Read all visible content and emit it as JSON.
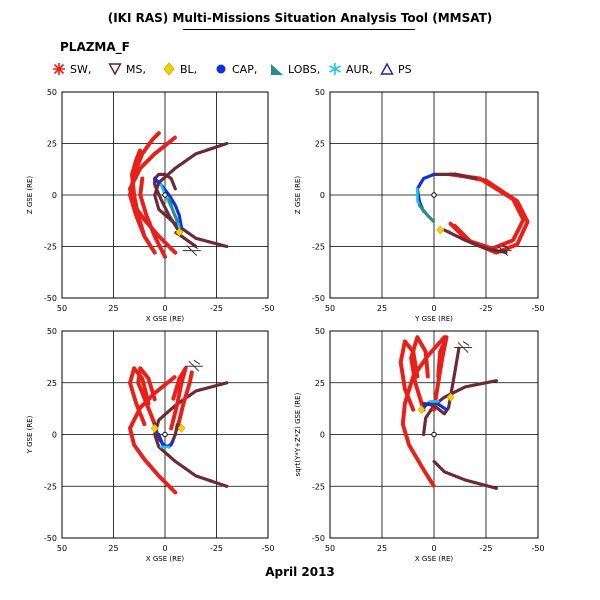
{
  "header": {
    "title": "(IKI RAS) Multi-Missions Situation Analysis Tool (MMSAT)",
    "subtitle": "PLAZMA_F"
  },
  "legend": [
    {
      "label": "SW,",
      "symbol": "star",
      "color": "#e8201a"
    },
    {
      "label": "MS,",
      "symbol": "triangle-down",
      "color": "#6b1a2a"
    },
    {
      "label": "BL,",
      "symbol": "diamond",
      "color": "#f5d000"
    },
    {
      "label": "CAP,",
      "symbol": "dot",
      "color": "#1030e0"
    },
    {
      "label": "LOBS,",
      "symbol": "right-triangle",
      "color": "#2c8c8c"
    },
    {
      "label": "AUR,",
      "symbol": "asterisk",
      "color": "#20c8e0"
    },
    {
      "label": "PS",
      "symbol": "triangle-up",
      "color": "#2020a0"
    }
  ],
  "footer": {
    "date": "April 2013"
  },
  "colors": {
    "SW": "#e8201a",
    "MS": "#6b2a36",
    "BL": "#f5d000",
    "CAP": "#1030e0",
    "LOBS": "#2c8c8c",
    "AUR": "#20c8e0",
    "grid": "#000000"
  },
  "chart_data": [
    {
      "type": "scatter",
      "xlabel": "X GSE (RE)",
      "ylabel": "Z GSE (RE)",
      "xlim": [
        50,
        -50
      ],
      "ylim": [
        -50,
        50
      ],
      "xticks": [
        "50",
        "25",
        "0",
        "-25",
        "-50"
      ],
      "yticks": [
        "-50",
        "-25",
        "0",
        "25",
        "50"
      ],
      "grid": true,
      "series": [
        {
          "kind": "magnetopause-boundary",
          "points": [
            [
              -30,
              25
            ],
            [
              -15,
              20
            ],
            [
              -5,
              13
            ],
            [
              3,
              6
            ],
            [
              5,
              0
            ],
            [
              3,
              -7
            ],
            [
              -5,
              -14
            ],
            [
              -15,
              -21
            ],
            [
              -30,
              -25
            ]
          ]
        },
        {
          "kind": "bow-shock-boundary",
          "points": [
            [
              -5,
              -28
            ],
            [
              3,
              -20
            ],
            [
              10,
              -12
            ],
            [
              15,
              -5
            ],
            [
              17,
              3
            ],
            [
              12,
              13
            ],
            [
              5,
              20
            ],
            [
              -5,
              28
            ]
          ]
        },
        {
          "kind": "orbit-sw",
          "points": [
            [
              10,
              -20
            ],
            [
              13,
              -10
            ],
            [
              15,
              0
            ],
            [
              16,
              10
            ],
            [
              14,
              17
            ],
            [
              12,
              22
            ]
          ]
        },
        {
          "kind": "orbit-sw",
          "points": [
            [
              5,
              -28
            ],
            [
              10,
              -20
            ],
            [
              14,
              -10
            ],
            [
              17,
              0
            ],
            [
              15,
              10
            ],
            [
              11,
              20
            ],
            [
              6,
              27
            ],
            [
              3,
              30
            ]
          ]
        },
        {
          "kind": "orbit-sw",
          "points": [
            [
              0,
              -30
            ],
            [
              5,
              -20
            ],
            [
              9,
              -10
            ],
            [
              12,
              0
            ],
            [
              11,
              8
            ]
          ]
        },
        {
          "kind": "orbit-ms",
          "points": [
            [
              -7,
              -18
            ],
            [
              -2,
              -10
            ],
            [
              2,
              -2
            ],
            [
              5,
              5
            ],
            [
              5,
              8
            ],
            [
              3,
              10
            ],
            [
              0,
              10
            ],
            [
              -3,
              8
            ],
            [
              -5,
              3
            ]
          ]
        },
        {
          "kind": "orbit-ms",
          "points": [
            [
              -15,
              -25
            ],
            [
              -8,
              -20
            ],
            [
              -5,
              -18
            ]
          ]
        },
        {
          "kind": "orbit-cap",
          "points": [
            [
              5,
              8
            ],
            [
              2,
              5
            ],
            [
              -2,
              0
            ],
            [
              -5,
              -5
            ],
            [
              -7,
              -10
            ],
            [
              -8,
              -16
            ]
          ]
        },
        {
          "kind": "orbit-aur",
          "points": [
            [
              2,
              5
            ],
            [
              0,
              0
            ],
            [
              -3,
              -6
            ],
            [
              -6,
              -12
            ],
            [
              -7,
              -16
            ]
          ]
        },
        {
          "kind": "orbit-lobs",
          "points": [
            [
              -2,
              -2
            ],
            [
              -4,
              -8
            ],
            [
              -6,
              -13
            ]
          ]
        },
        {
          "kind": "orbit-bl",
          "points": [
            [
              -7,
              -18
            ]
          ]
        },
        {
          "kind": "current-position",
          "points": [
            [
              -13,
              -27
            ]
          ]
        }
      ]
    },
    {
      "type": "scatter",
      "xlabel": "Y GSE (RE)",
      "ylabel": "Z GSE (RE)",
      "xlim": [
        50,
        -50
      ],
      "ylim": [
        -50,
        50
      ],
      "xticks": [
        "50",
        "25",
        "0",
        "-25",
        "-50"
      ],
      "yticks": [
        "-50",
        "-25",
        "0",
        "25",
        "50"
      ],
      "grid": true,
      "series": [
        {
          "kind": "orbit-sw",
          "points": [
            [
              -10,
              10
            ],
            [
              -25,
              7
            ],
            [
              -40,
              -3
            ],
            [
              -45,
              -13
            ],
            [
              -40,
              -24
            ],
            [
              -30,
              -28
            ],
            [
              -18,
              -23
            ],
            [
              -10,
              -15
            ]
          ]
        },
        {
          "kind": "orbit-sw",
          "points": [
            [
              -8,
              10
            ],
            [
              -22,
              8
            ],
            [
              -38,
              -2
            ],
            [
              -43,
              -12
            ],
            [
              -38,
              -22
            ],
            [
              -28,
              -26
            ],
            [
              -16,
              -22
            ],
            [
              -8,
              -14
            ]
          ]
        },
        {
          "kind": "orbit-ms",
          "points": [
            [
              0,
              10
            ],
            [
              -10,
              10
            ],
            [
              -20,
              8
            ]
          ]
        },
        {
          "kind": "orbit-ms",
          "points": [
            [
              -5,
              -17
            ],
            [
              -15,
              -22
            ],
            [
              -25,
              -26
            ],
            [
              -35,
              -28
            ]
          ]
        },
        {
          "kind": "orbit-cap",
          "points": [
            [
              0,
              10
            ],
            [
              5,
              8
            ],
            [
              8,
              3
            ],
            [
              7,
              -3
            ],
            [
              5,
              -8
            ]
          ]
        },
        {
          "kind": "orbit-aur",
          "points": [
            [
              8,
              3
            ],
            [
              8,
              -3
            ],
            [
              5,
              -8
            ]
          ]
        },
        {
          "kind": "orbit-lobs",
          "points": [
            [
              7,
              -5
            ],
            [
              3,
              -10
            ],
            [
              0,
              -13
            ]
          ]
        },
        {
          "kind": "orbit-bl",
          "points": [
            [
              -3,
              -17
            ]
          ]
        },
        {
          "kind": "current-position",
          "points": [
            [
              -33,
              -27
            ]
          ]
        }
      ]
    },
    {
      "type": "scatter",
      "xlabel": "X GSE (RE)",
      "ylabel": "Y GSE (RE)",
      "xlim": [
        50,
        -50
      ],
      "ylim": [
        -50,
        50
      ],
      "xticks": [
        "50",
        "25",
        "0",
        "-25",
        "-50"
      ],
      "yticks": [
        "-50",
        "-25",
        "0",
        "25",
        "50"
      ],
      "grid": true,
      "series": [
        {
          "kind": "magnetopause-boundary",
          "points": [
            [
              -30,
              -25
            ],
            [
              -15,
              -20
            ],
            [
              -5,
              -13
            ],
            [
              3,
              -6
            ],
            [
              5,
              0
            ],
            [
              3,
              7
            ],
            [
              -5,
              14
            ],
            [
              -15,
              21
            ],
            [
              -30,
              25
            ]
          ]
        },
        {
          "kind": "bow-shock-boundary",
          "points": [
            [
              -5,
              -28
            ],
            [
              3,
              -20
            ],
            [
              10,
              -12
            ],
            [
              15,
              -5
            ],
            [
              17,
              3
            ],
            [
              12,
              13
            ],
            [
              5,
              20
            ],
            [
              -5,
              28
            ]
          ]
        },
        {
          "kind": "orbit-sw",
          "points": [
            [
              10,
              5
            ],
            [
              14,
              15
            ],
            [
              17,
              25
            ],
            [
              15,
              32
            ],
            [
              11,
              27
            ],
            [
              8,
              15
            ]
          ]
        },
        {
          "kind": "orbit-sw",
          "points": [
            [
              5,
              5
            ],
            [
              9,
              15
            ],
            [
              13,
              25
            ],
            [
              12,
              32
            ],
            [
              8,
              27
            ],
            [
              5,
              17
            ]
          ]
        },
        {
          "kind": "orbit-sw",
          "points": [
            [
              -3,
              3
            ],
            [
              -6,
              15
            ],
            [
              -8,
              25
            ],
            [
              -10,
              32
            ],
            [
              -7,
              27
            ],
            [
              -4,
              17
            ]
          ]
        },
        {
          "kind": "orbit-sw",
          "points": [
            [
              -6,
              3
            ],
            [
              -9,
              15
            ],
            [
              -12,
              25
            ],
            [
              -13,
              30
            ]
          ]
        },
        {
          "kind": "orbit-ms",
          "points": [
            [
              5,
              5
            ],
            [
              3,
              -2
            ],
            [
              0,
              -6
            ],
            [
              -3,
              -5
            ],
            [
              -5,
              0
            ],
            [
              -6,
              5
            ]
          ]
        },
        {
          "kind": "orbit-cap",
          "points": [
            [
              3,
              0
            ],
            [
              1,
              -5
            ],
            [
              -2,
              -6
            ],
            [
              -4,
              -3
            ]
          ]
        },
        {
          "kind": "orbit-aur",
          "points": [
            [
              2,
              -6
            ],
            [
              -2,
              -6
            ]
          ]
        },
        {
          "kind": "orbit-bl",
          "points": [
            [
              5,
              3
            ],
            [
              -8,
              3
            ]
          ]
        },
        {
          "kind": "current-position",
          "points": [
            [
              -14,
              33
            ]
          ]
        }
      ]
    },
    {
      "type": "scatter",
      "xlabel": "X GSE (RE)",
      "ylabel": "sqrt(Y*Y+Z*Z) GSE (RE)",
      "xlim": [
        50,
        -50
      ],
      "ylim": [
        -50,
        50
      ],
      "xticks": [
        "50",
        "25",
        "0",
        "-25",
        "-50"
      ],
      "yticks": [
        "-50",
        "-25",
        "0",
        "25",
        "50"
      ],
      "grid": true,
      "series": [
        {
          "kind": "magnetopause-boundary",
          "points": [
            [
              -30,
              26
            ],
            [
              -15,
              23
            ],
            [
              -5,
              18
            ],
            [
              0,
              14
            ],
            [
              4,
              8
            ],
            [
              5,
              0
            ]
          ]
        },
        {
          "kind": "bow-shock-boundary",
          "points": [
            [
              -5,
              47
            ],
            [
              3,
              38
            ],
            [
              10,
              28
            ],
            [
              14,
              15
            ],
            [
              15,
              5
            ],
            [
              12,
              -5
            ],
            [
              5,
              -17
            ],
            [
              0,
              -25
            ]
          ]
        },
        {
          "kind": "orbit-sw",
          "points": [
            [
              10,
              12
            ],
            [
              14,
              22
            ],
            [
              16,
              35
            ],
            [
              14,
              45
            ],
            [
              10,
              40
            ],
            [
              8,
              28
            ]
          ]
        },
        {
          "kind": "orbit-sw",
          "points": [
            [
              5,
              12
            ],
            [
              9,
              25
            ],
            [
              11,
              37
            ],
            [
              8,
              47
            ],
            [
              4,
              40
            ],
            [
              3,
              28
            ]
          ]
        },
        {
          "kind": "orbit-sw",
          "points": [
            [
              0,
              12
            ],
            [
              -2,
              25
            ],
            [
              -4,
              37
            ],
            [
              -6,
              47
            ],
            [
              -3,
              40
            ],
            [
              -2,
              28
            ]
          ]
        },
        {
          "kind": "orbit-ms",
          "points": [
            [
              5,
              15
            ],
            [
              0,
              14
            ],
            [
              -5,
              10
            ],
            [
              -7,
              13
            ],
            [
              -10,
              30
            ],
            [
              -12,
              42
            ]
          ]
        },
        {
          "kind": "orbit-ms",
          "points": [
            [
              -30,
              -26
            ],
            [
              -15,
              -22
            ],
            [
              -5,
              -18
            ],
            [
              0,
              -13
            ]
          ]
        },
        {
          "kind": "orbit-cap",
          "points": [
            [
              6,
              12
            ],
            [
              3,
              15
            ],
            [
              0,
              16
            ],
            [
              -3,
              14
            ],
            [
              -6,
              12
            ]
          ]
        },
        {
          "kind": "orbit-aur",
          "points": [
            [
              2,
              16
            ],
            [
              -2,
              16
            ]
          ]
        },
        {
          "kind": "orbit-bl",
          "points": [
            [
              6,
              12
            ],
            [
              -8,
              18
            ]
          ]
        },
        {
          "kind": "current-position",
          "points": [
            [
              -14,
              42
            ]
          ]
        }
      ]
    }
  ]
}
